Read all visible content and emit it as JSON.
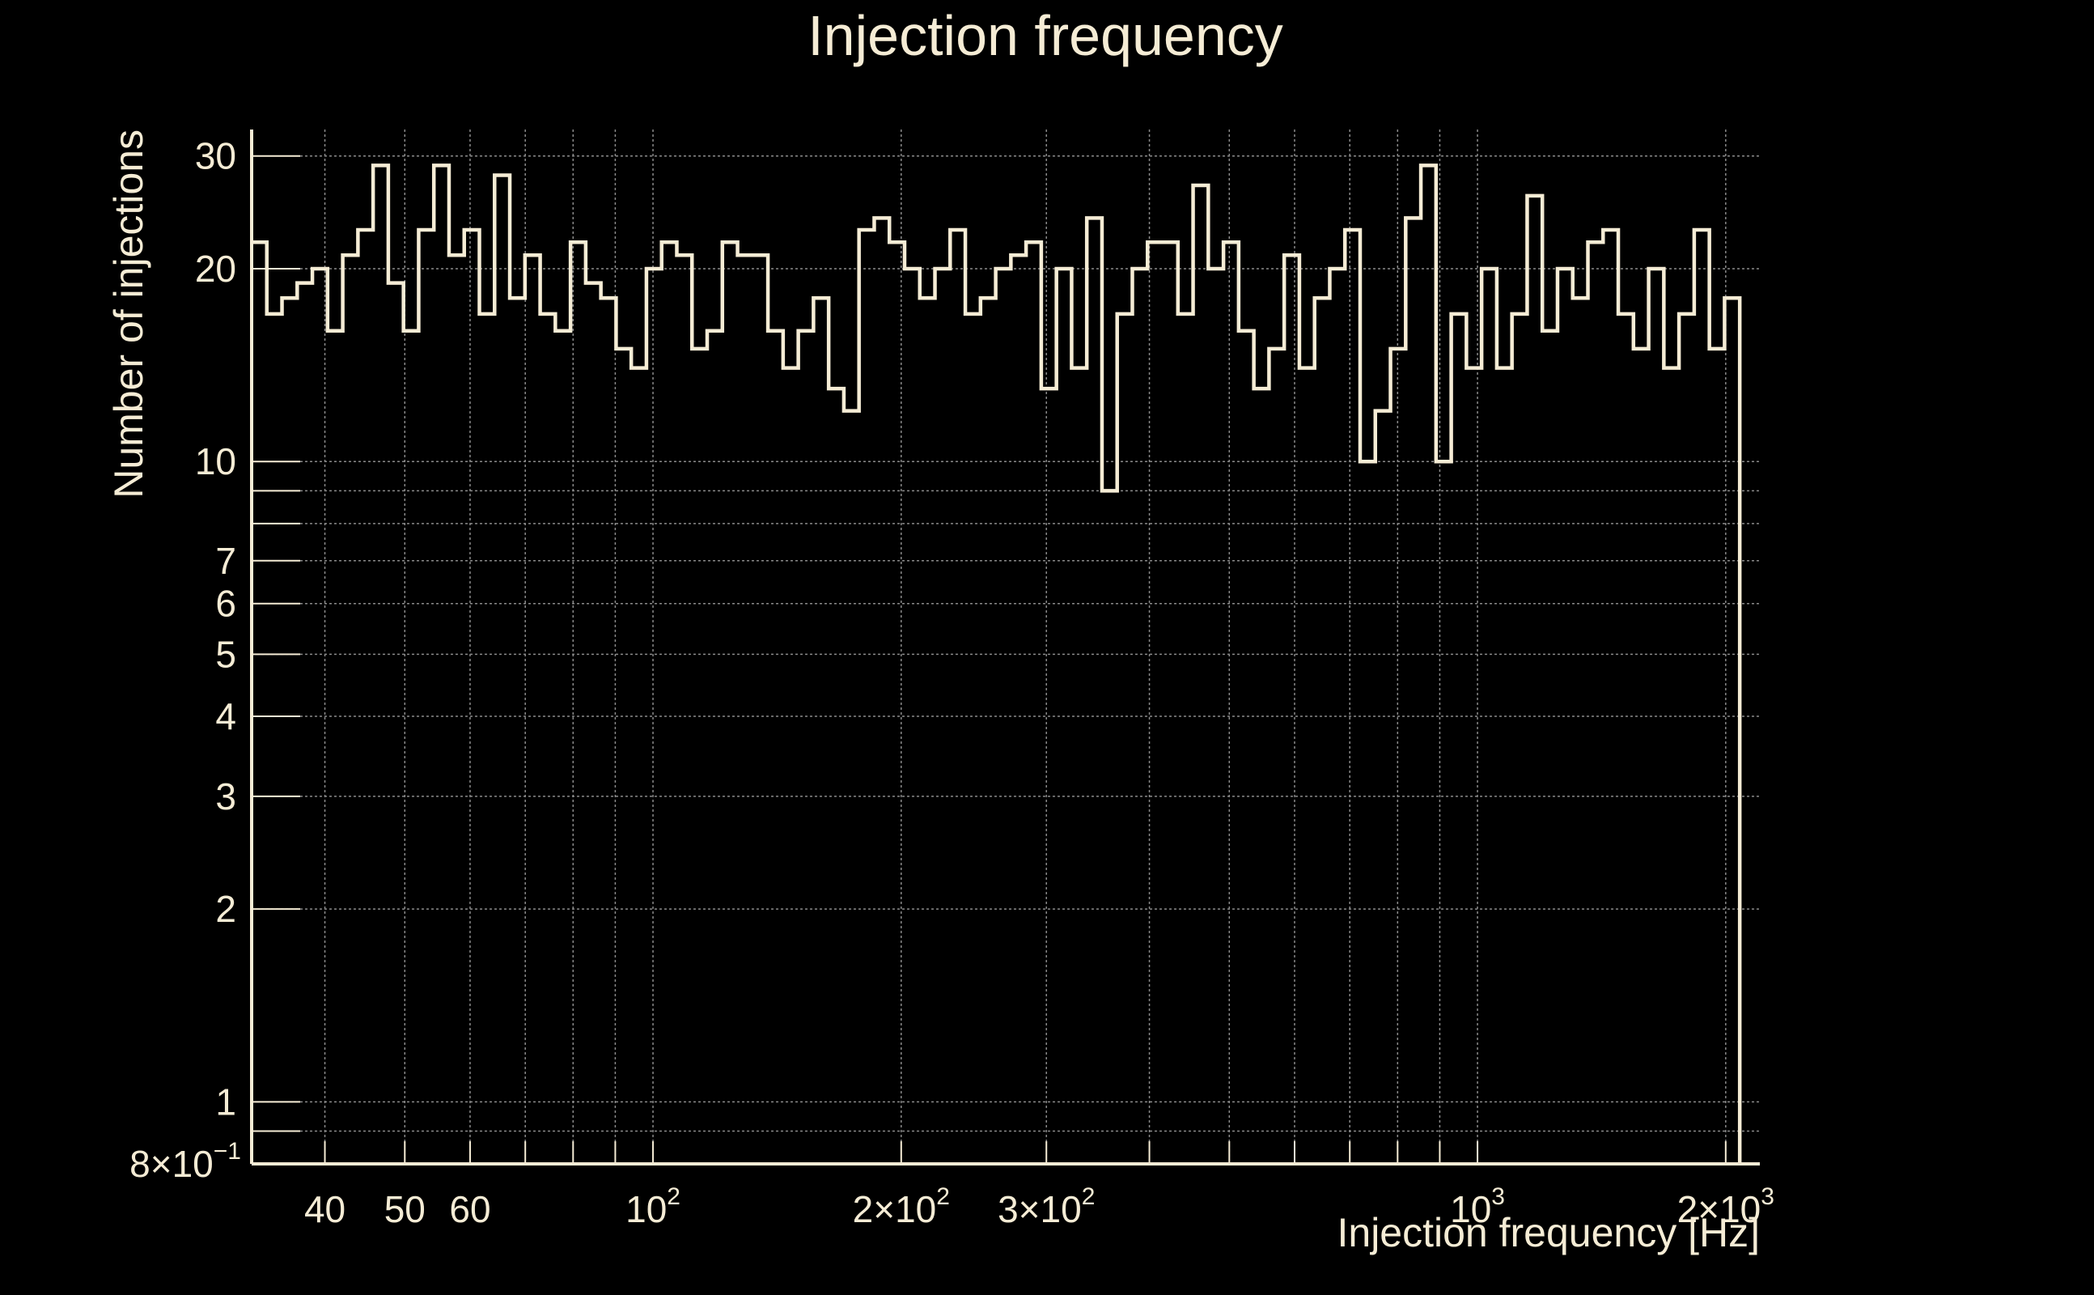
{
  "chart_data": {
    "type": "histogram",
    "title": "Injection frequency",
    "xlabel": "Injection frequency [Hz]",
    "ylabel": "Number of injections",
    "x_scale": "log",
    "y_scale": "log",
    "xlim": [
      32.6,
      2200
    ],
    "ylim": [
      0.8,
      33
    ],
    "grid": true,
    "colors": {
      "background": "#000000",
      "foreground": "#f5ecd5",
      "grid": "#8a8a8a"
    },
    "x_ticks": [
      {
        "value": 40,
        "label": "40"
      },
      {
        "value": 50,
        "label": "50"
      },
      {
        "value": 60,
        "label": "60"
      },
      {
        "value": 100,
        "label": "10",
        "sup": "2"
      },
      {
        "value": 200,
        "label": "2×10",
        "sup": "2"
      },
      {
        "value": 300,
        "label": "3×10",
        "sup": "2"
      },
      {
        "value": 1000,
        "label": "10",
        "sup": "3"
      },
      {
        "value": 2000,
        "label": "2×10",
        "sup": "3"
      }
    ],
    "y_ticks": [
      {
        "value": 0.8,
        "label": "8×10",
        "sup": "−1"
      },
      {
        "value": 1,
        "label": "1"
      },
      {
        "value": 2,
        "label": "2"
      },
      {
        "value": 3,
        "label": "3"
      },
      {
        "value": 4,
        "label": "4"
      },
      {
        "value": 5,
        "label": "5"
      },
      {
        "value": 6,
        "label": "6"
      },
      {
        "value": 7,
        "label": "7"
      },
      {
        "value": 10,
        "label": "10"
      },
      {
        "value": 20,
        "label": "20"
      },
      {
        "value": 30,
        "label": "30"
      }
    ],
    "x_minor_grid": [
      70,
      80,
      90,
      400,
      500,
      600,
      700,
      800,
      900
    ],
    "y_minor_grid": [
      0.9,
      8,
      9
    ],
    "bin_range": [
      32.6,
      2080
    ],
    "counts": [
      22,
      17,
      18,
      19,
      20,
      16,
      21,
      23,
      29,
      19,
      16,
      23,
      29,
      21,
      23,
      17,
      28,
      18,
      21,
      17,
      16,
      22,
      19,
      18,
      15,
      14,
      20,
      22,
      21,
      15,
      16,
      22,
      21,
      21,
      16,
      14,
      16,
      18,
      13,
      12,
      23,
      24,
      22,
      20,
      18,
      20,
      23,
      17,
      18,
      20,
      21,
      22,
      13,
      20,
      14,
      24,
      9,
      17,
      20,
      22,
      22,
      17,
      27,
      20,
      22,
      16,
      13,
      15,
      21,
      14,
      18,
      20,
      23,
      10,
      12,
      15,
      24,
      29,
      10,
      17,
      14,
      20,
      14,
      17,
      26,
      16,
      20,
      18,
      22,
      23,
      17,
      15,
      20,
      14,
      17,
      23,
      15,
      18
    ]
  }
}
